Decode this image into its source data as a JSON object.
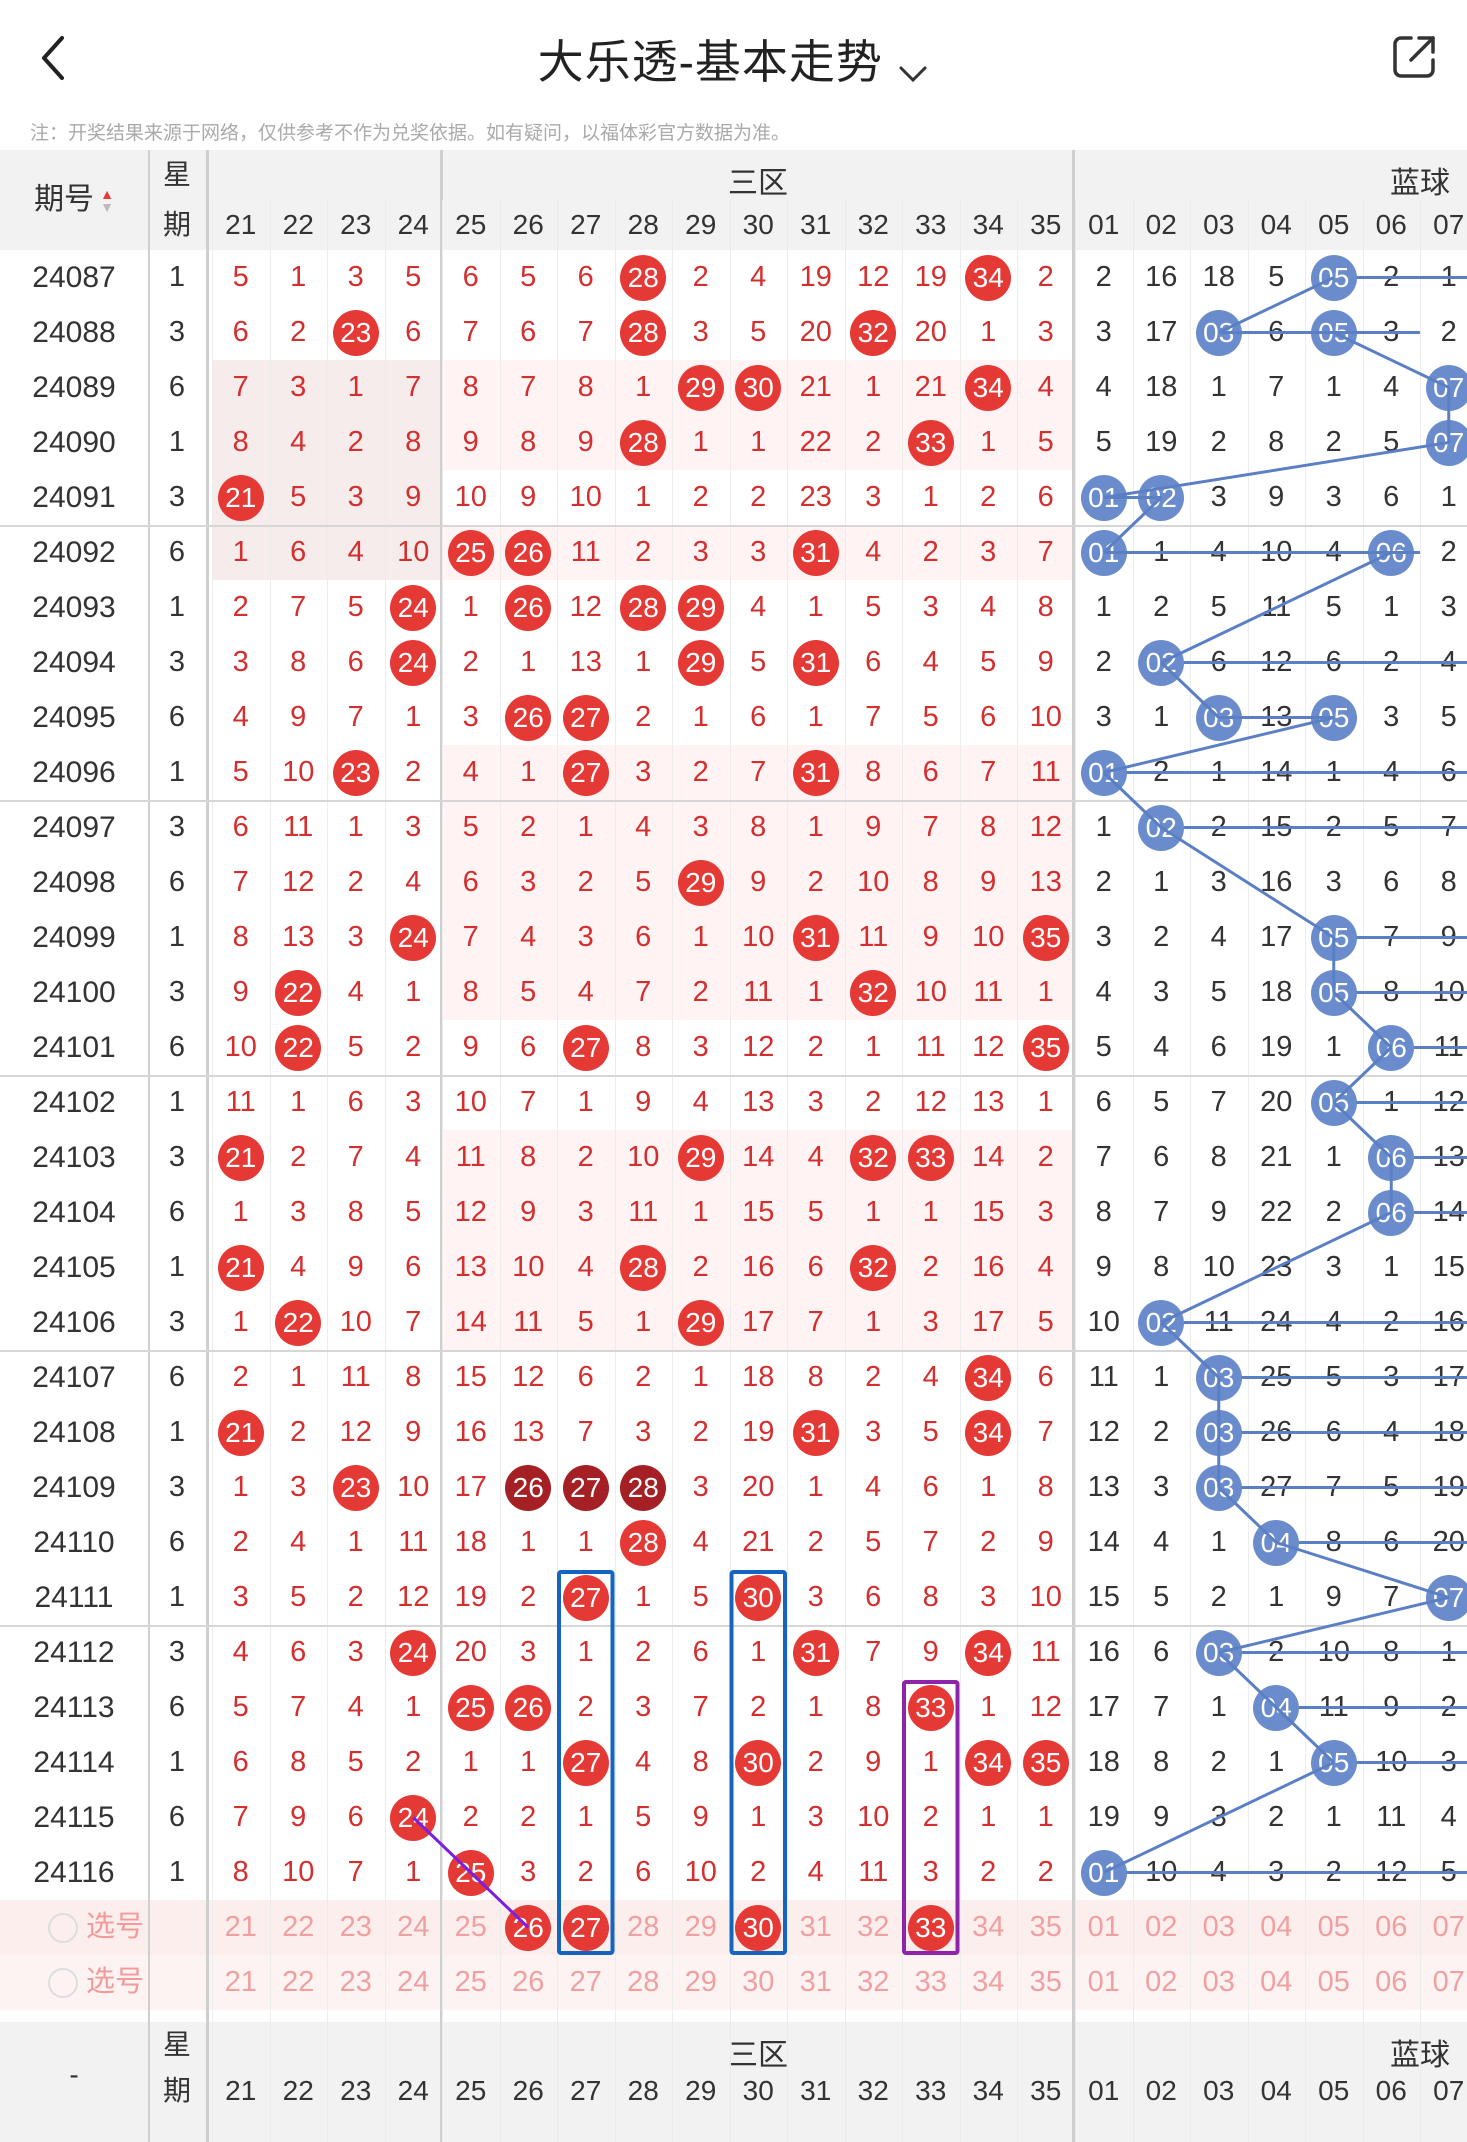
{
  "header": {
    "title": "大乐透-基本走势",
    "back_icon": "back-chevron-icon",
    "share_icon": "share-icon"
  },
  "note": "注：开奖结果来源于网络，仅供参考不作为兑奖依据。如有疑问，以福体彩官方数据为准。",
  "table_header": {
    "issue_label": "期号",
    "week_label_top": "星",
    "week_label_bottom": "期",
    "zone3_label": "三区",
    "blue_label": "蓝球",
    "front_columns": [
      "21",
      "22",
      "23",
      "24",
      "25",
      "26",
      "27",
      "28",
      "29",
      "30",
      "31",
      "32",
      "33",
      "34",
      "35"
    ],
    "blue_columns": [
      "01",
      "02",
      "03",
      "04",
      "05",
      "06",
      "07"
    ]
  },
  "rows": [
    {
      "issue": "24087",
      "week": "1",
      "front": [
        "5",
        "1",
        "3",
        "5",
        "6",
        "5",
        "6",
        "28",
        "2",
        "4",
        "19",
        "12",
        "19",
        "34",
        "2"
      ],
      "blue": [
        "2",
        "16",
        "18",
        "5",
        "05",
        "2",
        "1"
      ]
    },
    {
      "issue": "24088",
      "week": "3",
      "front": [
        "6",
        "2",
        "23",
        "6",
        "7",
        "6",
        "7",
        "28",
        "3",
        "5",
        "20",
        "32",
        "20",
        "1",
        "3"
      ],
      "blue": [
        "3",
        "17",
        "03",
        "6",
        "05",
        "3",
        "2"
      ]
    },
    {
      "issue": "24089",
      "week": "6",
      "front": [
        "7",
        "3",
        "1",
        "7",
        "8",
        "7",
        "8",
        "1",
        "29",
        "30",
        "21",
        "1",
        "21",
        "34",
        "4"
      ],
      "blue": [
        "4",
        "18",
        "1",
        "7",
        "1",
        "4",
        "07"
      ]
    },
    {
      "issue": "24090",
      "week": "1",
      "front": [
        "8",
        "4",
        "2",
        "8",
        "9",
        "8",
        "9",
        "28",
        "1",
        "1",
        "22",
        "2",
        "33",
        "1",
        "5"
      ],
      "blue": [
        "5",
        "19",
        "2",
        "8",
        "2",
        "5",
        "07"
      ]
    },
    {
      "issue": "24091",
      "week": "3",
      "front": [
        "21",
        "5",
        "3",
        "9",
        "10",
        "9",
        "10",
        "1",
        "2",
        "2",
        "23",
        "3",
        "1",
        "2",
        "6"
      ],
      "blue": [
        "01",
        "02",
        "3",
        "9",
        "3",
        "6",
        "1"
      ]
    },
    {
      "issue": "24092",
      "week": "6",
      "front": [
        "1",
        "6",
        "4",
        "10",
        "25",
        "26",
        "11",
        "2",
        "3",
        "3",
        "31",
        "4",
        "2",
        "3",
        "7"
      ],
      "blue": [
        "01",
        "1",
        "4",
        "10",
        "4",
        "06",
        "2"
      ]
    },
    {
      "issue": "24093",
      "week": "1",
      "front": [
        "2",
        "7",
        "5",
        "24",
        "1",
        "26",
        "12",
        "28",
        "29",
        "4",
        "1",
        "5",
        "3",
        "4",
        "8"
      ],
      "blue": [
        "1",
        "2",
        "5",
        "11",
        "5",
        "1",
        "3"
      ]
    },
    {
      "issue": "24094",
      "week": "3",
      "front": [
        "3",
        "8",
        "6",
        "24",
        "2",
        "1",
        "13",
        "1",
        "29",
        "5",
        "31",
        "6",
        "4",
        "5",
        "9"
      ],
      "blue": [
        "2",
        "02",
        "6",
        "12",
        "6",
        "2",
        "4"
      ]
    },
    {
      "issue": "24095",
      "week": "6",
      "front": [
        "4",
        "9",
        "7",
        "1",
        "3",
        "26",
        "27",
        "2",
        "1",
        "6",
        "1",
        "7",
        "5",
        "6",
        "10"
      ],
      "blue": [
        "3",
        "1",
        "03",
        "13",
        "05",
        "3",
        "5"
      ]
    },
    {
      "issue": "24096",
      "week": "1",
      "front": [
        "5",
        "10",
        "23",
        "2",
        "4",
        "1",
        "27",
        "3",
        "2",
        "7",
        "31",
        "8",
        "6",
        "7",
        "11"
      ],
      "blue": [
        "01",
        "2",
        "1",
        "14",
        "1",
        "4",
        "6"
      ]
    },
    {
      "issue": "24097",
      "week": "3",
      "front": [
        "6",
        "11",
        "1",
        "3",
        "5",
        "2",
        "1",
        "4",
        "3",
        "8",
        "1",
        "9",
        "7",
        "8",
        "12"
      ],
      "blue": [
        "1",
        "02",
        "2",
        "15",
        "2",
        "5",
        "7"
      ]
    },
    {
      "issue": "24098",
      "week": "6",
      "front": [
        "7",
        "12",
        "2",
        "4",
        "6",
        "3",
        "2",
        "5",
        "29",
        "9",
        "2",
        "10",
        "8",
        "9",
        "13"
      ],
      "blue": [
        "2",
        "1",
        "3",
        "16",
        "3",
        "6",
        "8"
      ]
    },
    {
      "issue": "24099",
      "week": "1",
      "front": [
        "8",
        "13",
        "3",
        "24",
        "7",
        "4",
        "3",
        "6",
        "1",
        "10",
        "31",
        "11",
        "9",
        "10",
        "35"
      ],
      "blue": [
        "3",
        "2",
        "4",
        "17",
        "05",
        "7",
        "9"
      ]
    },
    {
      "issue": "24100",
      "week": "3",
      "front": [
        "9",
        "22",
        "4",
        "1",
        "8",
        "5",
        "4",
        "7",
        "2",
        "11",
        "1",
        "32",
        "10",
        "11",
        "1"
      ],
      "blue": [
        "4",
        "3",
        "5",
        "18",
        "05",
        "8",
        "10"
      ]
    },
    {
      "issue": "24101",
      "week": "6",
      "front": [
        "10",
        "22",
        "5",
        "2",
        "9",
        "6",
        "27",
        "8",
        "3",
        "12",
        "2",
        "1",
        "11",
        "12",
        "35"
      ],
      "blue": [
        "5",
        "4",
        "6",
        "19",
        "1",
        "06",
        "11"
      ]
    },
    {
      "issue": "24102",
      "week": "1",
      "front": [
        "11",
        "1",
        "6",
        "3",
        "10",
        "7",
        "1",
        "9",
        "4",
        "13",
        "3",
        "2",
        "12",
        "13",
        "1"
      ],
      "blue": [
        "6",
        "5",
        "7",
        "20",
        "05",
        "1",
        "12"
      ]
    },
    {
      "issue": "24103",
      "week": "3",
      "front": [
        "21",
        "2",
        "7",
        "4",
        "11",
        "8",
        "2",
        "10",
        "29",
        "14",
        "4",
        "32",
        "33",
        "14",
        "2"
      ],
      "blue": [
        "7",
        "6",
        "8",
        "21",
        "1",
        "06",
        "13"
      ]
    },
    {
      "issue": "24104",
      "week": "6",
      "front": [
        "1",
        "3",
        "8",
        "5",
        "12",
        "9",
        "3",
        "11",
        "1",
        "15",
        "5",
        "1",
        "1",
        "15",
        "3"
      ],
      "blue": [
        "8",
        "7",
        "9",
        "22",
        "2",
        "06",
        "14"
      ]
    },
    {
      "issue": "24105",
      "week": "1",
      "front": [
        "21",
        "4",
        "9",
        "6",
        "13",
        "10",
        "4",
        "28",
        "2",
        "16",
        "6",
        "32",
        "2",
        "16",
        "4"
      ],
      "blue": [
        "9",
        "8",
        "10",
        "23",
        "3",
        "1",
        "15"
      ]
    },
    {
      "issue": "24106",
      "week": "3",
      "front": [
        "1",
        "22",
        "10",
        "7",
        "14",
        "11",
        "5",
        "1",
        "29",
        "17",
        "7",
        "1",
        "3",
        "17",
        "5"
      ],
      "blue": [
        "10",
        "02",
        "11",
        "24",
        "4",
        "2",
        "16"
      ]
    },
    {
      "issue": "24107",
      "week": "6",
      "front": [
        "2",
        "1",
        "11",
        "8",
        "15",
        "12",
        "6",
        "2",
        "1",
        "18",
        "8",
        "2",
        "4",
        "34",
        "6"
      ],
      "blue": [
        "11",
        "1",
        "03",
        "25",
        "5",
        "3",
        "17"
      ]
    },
    {
      "issue": "24108",
      "week": "1",
      "front": [
        "21",
        "2",
        "12",
        "9",
        "16",
        "13",
        "7",
        "3",
        "2",
        "19",
        "31",
        "3",
        "5",
        "34",
        "7"
      ],
      "blue": [
        "12",
        "2",
        "03",
        "26",
        "6",
        "4",
        "18"
      ]
    },
    {
      "issue": "24109",
      "week": "3",
      "front": [
        "1",
        "3",
        "23",
        "10",
        "17",
        "26",
        "27",
        "28",
        "3",
        "20",
        "1",
        "4",
        "6",
        "1",
        "8"
      ],
      "blue": [
        "13",
        "3",
        "03",
        "27",
        "7",
        "5",
        "19"
      ]
    },
    {
      "issue": "24110",
      "week": "6",
      "front": [
        "2",
        "4",
        "1",
        "11",
        "18",
        "1",
        "1",
        "28",
        "4",
        "21",
        "2",
        "5",
        "7",
        "2",
        "9"
      ],
      "blue": [
        "14",
        "4",
        "1",
        "04",
        "8",
        "6",
        "20"
      ]
    },
    {
      "issue": "24111",
      "week": "1",
      "front": [
        "3",
        "5",
        "2",
        "12",
        "19",
        "2",
        "27",
        "1",
        "5",
        "30",
        "3",
        "6",
        "8",
        "3",
        "10"
      ],
      "blue": [
        "15",
        "5",
        "2",
        "1",
        "9",
        "7",
        "07"
      ]
    },
    {
      "issue": "24112",
      "week": "3",
      "front": [
        "4",
        "6",
        "3",
        "24",
        "20",
        "3",
        "1",
        "2",
        "6",
        "1",
        "31",
        "7",
        "9",
        "34",
        "11"
      ],
      "blue": [
        "16",
        "6",
        "03",
        "2",
        "10",
        "8",
        "1"
      ]
    },
    {
      "issue": "24113",
      "week": "6",
      "front": [
        "5",
        "7",
        "4",
        "1",
        "25",
        "26",
        "2",
        "3",
        "7",
        "2",
        "1",
        "8",
        "33",
        "1",
        "12"
      ],
      "blue": [
        "17",
        "7",
        "1",
        "04",
        "11",
        "9",
        "2"
      ]
    },
    {
      "issue": "24114",
      "week": "1",
      "front": [
        "6",
        "8",
        "5",
        "2",
        "1",
        "1",
        "27",
        "4",
        "8",
        "30",
        "2",
        "9",
        "1",
        "34",
        "35"
      ],
      "blue": [
        "18",
        "8",
        "2",
        "1",
        "05",
        "10",
        "3"
      ]
    },
    {
      "issue": "24115",
      "week": "6",
      "front": [
        "7",
        "9",
        "6",
        "24",
        "2",
        "2",
        "1",
        "5",
        "9",
        "1",
        "3",
        "10",
        "2",
        "1",
        "1"
      ],
      "blue": [
        "19",
        "9",
        "3",
        "2",
        "1",
        "11",
        "4"
      ]
    },
    {
      "issue": "24116",
      "week": "1",
      "front": [
        "8",
        "10",
        "7",
        "1",
        "25",
        "3",
        "2",
        "6",
        "10",
        "2",
        "4",
        "11",
        "3",
        "2",
        "2"
      ],
      "blue": [
        "01",
        "10",
        "4",
        "3",
        "2",
        "12",
        "5"
      ]
    }
  ],
  "dark_balls": [
    [
      22,
      "26"
    ],
    [
      22,
      "27"
    ],
    [
      22,
      "28"
    ]
  ],
  "select_rows": [
    {
      "label": "选号",
      "front": [
        "21",
        "22",
        "23",
        "24",
        "25",
        "26",
        "27",
        "28",
        "29",
        "30",
        "31",
        "32",
        "33",
        "34",
        "35"
      ],
      "blue": [
        "01",
        "02",
        "03",
        "04",
        "05",
        "06",
        "07"
      ],
      "picked": [
        "26",
        "27",
        "30",
        "33"
      ]
    },
    {
      "label": "选号",
      "front": [
        "21",
        "22",
        "23",
        "24",
        "25",
        "26",
        "27",
        "28",
        "29",
        "30",
        "31",
        "32",
        "33",
        "34",
        "35"
      ],
      "blue": [
        "01",
        "02",
        "03",
        "04",
        "05",
        "06",
        "07"
      ],
      "picked": []
    }
  ],
  "footer": {
    "issue_label": "-",
    "week_label_top": "星",
    "week_label_bottom": "期",
    "zone3_label": "三区",
    "blue_label": "蓝球"
  },
  "colors": {
    "red_ball": "#e53935",
    "dark_ball": "#a52024",
    "blue_ball": "#6b8ccc",
    "blue_box": "#1565c0",
    "purple_box": "#8e24aa"
  }
}
